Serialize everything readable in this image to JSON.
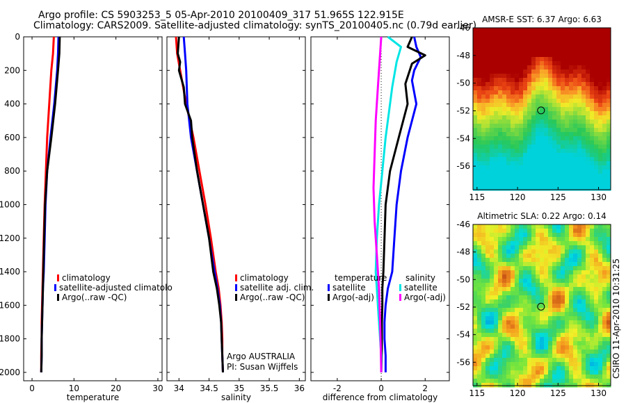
{
  "header": {
    "line1": "Argo profile: CS 5903253_5 05-Apr-2010 20100409_317 51.965S 122.915E",
    "line2": "Climatology: CARS2009. Satellite-adjusted climatology: synTS_20100405.nc (0.79d earlier)"
  },
  "side_label": "CSIRO 11-Apr-2010 10:31:25",
  "colors": {
    "climatology": "#ff0000",
    "satellite": "#0000ff",
    "argo": "#000000",
    "salinity_sat": "#00e5e5",
    "salinity_argo": "#ff00ff"
  },
  "chart_data": [
    {
      "type": "line",
      "name": "temperature-panel",
      "xlabel": "temperature",
      "ylabel": "",
      "xlim": [
        -2,
        31
      ],
      "ylim": [
        2050,
        0
      ],
      "xticks": [
        0,
        10,
        20,
        30
      ],
      "yticks": [
        0,
        200,
        400,
        600,
        800,
        1000,
        1200,
        1400,
        1600,
        1800,
        2000
      ],
      "legend": [
        "climatology",
        "satellite-adjusted climatolo",
        "Argo(..raw -QC)"
      ],
      "series": [
        {
          "name": "climatology",
          "color": "#ff0000",
          "x": [
            5.2,
            5.0,
            4.6,
            4.1,
            3.6,
            3.3,
            3.0,
            2.8,
            2.6,
            2.5,
            2.4,
            2.3,
            2.3,
            2.2,
            2.2
          ],
          "y": [
            0,
            100,
            200,
            400,
            600,
            800,
            1000,
            1200,
            1400,
            1500,
            1600,
            1700,
            1800,
            1900,
            2000
          ]
        },
        {
          "name": "satellite-adjusted climatology",
          "color": "#0000ff",
          "x": [
            6.3,
            6.2,
            6.0,
            5.3,
            4.4,
            3.6,
            3.2,
            3.0,
            2.8,
            2.6,
            2.5,
            2.4,
            2.3,
            2.3,
            2.2
          ],
          "y": [
            0,
            100,
            200,
            400,
            600,
            800,
            1000,
            1200,
            1400,
            1500,
            1600,
            1700,
            1800,
            1900,
            2000
          ]
        },
        {
          "name": "Argo(..raw -QC)",
          "color": "#000000",
          "x": [
            6.6,
            6.5,
            6.2,
            5.5,
            4.6,
            3.6,
            3.1,
            2.9,
            2.7,
            2.6,
            2.5,
            2.4,
            2.3,
            2.3,
            2.2
          ],
          "y": [
            0,
            100,
            200,
            400,
            600,
            800,
            1000,
            1200,
            1400,
            1500,
            1600,
            1700,
            1800,
            1900,
            2000
          ]
        }
      ]
    },
    {
      "type": "line",
      "name": "salinity-panel",
      "xlabel": "salinity",
      "xlim": [
        33.8,
        36.1
      ],
      "ylim": [
        2050,
        0
      ],
      "xticks": [
        34,
        34.5,
        35,
        35.5,
        36
      ],
      "legend": [
        "climatology",
        "satellite adj. clim.",
        "Argo(..raw -QC)"
      ],
      "annotation": [
        "Argo AUSTRALIA",
        "PI: Susan Wijffels"
      ],
      "series": [
        {
          "name": "climatology",
          "color": "#ff0000",
          "x": [
            33.95,
            33.97,
            34.02,
            34.12,
            34.24,
            34.34,
            34.44,
            34.53,
            34.61,
            34.66,
            34.69,
            34.71,
            34.72,
            34.72,
            34.73
          ],
          "y": [
            0,
            100,
            200,
            400,
            600,
            800,
            1000,
            1200,
            1400,
            1500,
            1600,
            1700,
            1800,
            1900,
            2000
          ]
        },
        {
          "name": "satellite adj. clim.",
          "color": "#0000ff",
          "x": [
            34.08,
            34.1,
            34.12,
            34.14,
            34.2,
            34.3,
            34.4,
            34.5,
            34.59,
            34.64,
            34.68,
            34.7,
            34.71,
            34.72,
            34.73
          ],
          "y": [
            0,
            100,
            200,
            400,
            600,
            800,
            1000,
            1200,
            1400,
            1500,
            1600,
            1700,
            1800,
            1900,
            2000
          ]
        },
        {
          "name": "Argo(..raw -QC)",
          "color": "#000000",
          "x": [
            34.0,
            33.98,
            34.02,
            34.0,
            34.08,
            34.1,
            34.2,
            34.22,
            34.3,
            34.4,
            34.5,
            34.57,
            34.63,
            34.67,
            34.7,
            34.71,
            34.72,
            34.73
          ],
          "y": [
            0,
            100,
            150,
            200,
            300,
            400,
            500,
            600,
            800,
            1000,
            1200,
            1400,
            1500,
            1600,
            1700,
            1800,
            1900,
            2000
          ]
        }
      ]
    },
    {
      "type": "line",
      "name": "difference-panel",
      "xlabel": "difference from climatology",
      "xlim": [
        -3.2,
        3.1
      ],
      "ylim": [
        2050,
        0
      ],
      "xticks": [
        -2,
        0,
        2
      ],
      "legend": [
        "temperature",
        "salinity",
        "satellite",
        "Argo(-adj)",
        "satellite",
        "Argo(-adj)"
      ],
      "series": [
        {
          "name": "temperature satellite",
          "color": "#0000ff",
          "x": [
            1.5,
            1.6,
            1.8,
            1.5,
            1.4,
            1.6,
            1.2,
            0.9,
            0.7,
            0.6,
            0.5,
            0.3,
            0.2,
            0.15,
            0.15,
            0.2,
            0.2
          ],
          "y": [
            0,
            60,
            120,
            200,
            260,
            400,
            600,
            800,
            1000,
            1200,
            1400,
            1500,
            1600,
            1700,
            1800,
            1900,
            2000
          ]
        },
        {
          "name": "temperature Argo(-adj)",
          "color": "#000000",
          "x": [
            1.4,
            1.2,
            2.0,
            1.4,
            1.1,
            1.2,
            0.8,
            0.4,
            0.2,
            0.15,
            0.1,
            0.05,
            0.05,
            0.03,
            0.03,
            0.02,
            0.0
          ],
          "y": [
            0,
            60,
            110,
            160,
            280,
            400,
            600,
            800,
            1000,
            1200,
            1400,
            1500,
            1600,
            1700,
            1800,
            1900,
            2000
          ]
        },
        {
          "name": "salinity satellite",
          "color": "#00e5e5",
          "x": [
            0.3,
            0.9,
            0.7,
            0.5,
            0.3,
            0.2,
            0.05,
            -0.1,
            -0.2,
            -0.25,
            -0.2,
            -0.15,
            -0.1,
            -0.05,
            0.0,
            0.0
          ],
          "y": [
            0,
            60,
            150,
            300,
            500,
            600,
            800,
            1000,
            1200,
            1400,
            1500,
            1600,
            1700,
            1800,
            1900,
            2000
          ]
        },
        {
          "name": "salinity Argo(-adj)",
          "color": "#ff00ff",
          "x": [
            0.0,
            -0.05,
            -0.15,
            -0.25,
            -0.3,
            -0.35,
            -0.3,
            -0.2,
            -0.1,
            -0.05,
            -0.02,
            0.0
          ],
          "y": [
            0,
            100,
            300,
            500,
            700,
            900,
            1100,
            1300,
            1500,
            1700,
            1850,
            2000
          ]
        }
      ]
    },
    {
      "type": "heatmap",
      "name": "sst-map",
      "title": "AMSR-E SST: 6.37 Argo: 6.63",
      "xlim": [
        114.5,
        131.5
      ],
      "ylim": [
        -57.7,
        -46
      ],
      "xticks": [
        115,
        120,
        125,
        130
      ],
      "yticks": [
        -46,
        -48,
        -50,
        -52,
        -54,
        -56
      ],
      "marker": {
        "x": 122.9,
        "y": -51.97
      }
    },
    {
      "type": "heatmap",
      "name": "sla-map",
      "title": "Altimetric SLA: 0.22 Argo: 0.14",
      "xlim": [
        114.5,
        131.5
      ],
      "ylim": [
        -57.7,
        -46
      ],
      "xticks": [
        115,
        120,
        125,
        130
      ],
      "yticks": [
        -46,
        -48,
        -50,
        -52,
        -54,
        -56
      ],
      "marker": {
        "x": 122.9,
        "y": -51.97
      }
    }
  ]
}
